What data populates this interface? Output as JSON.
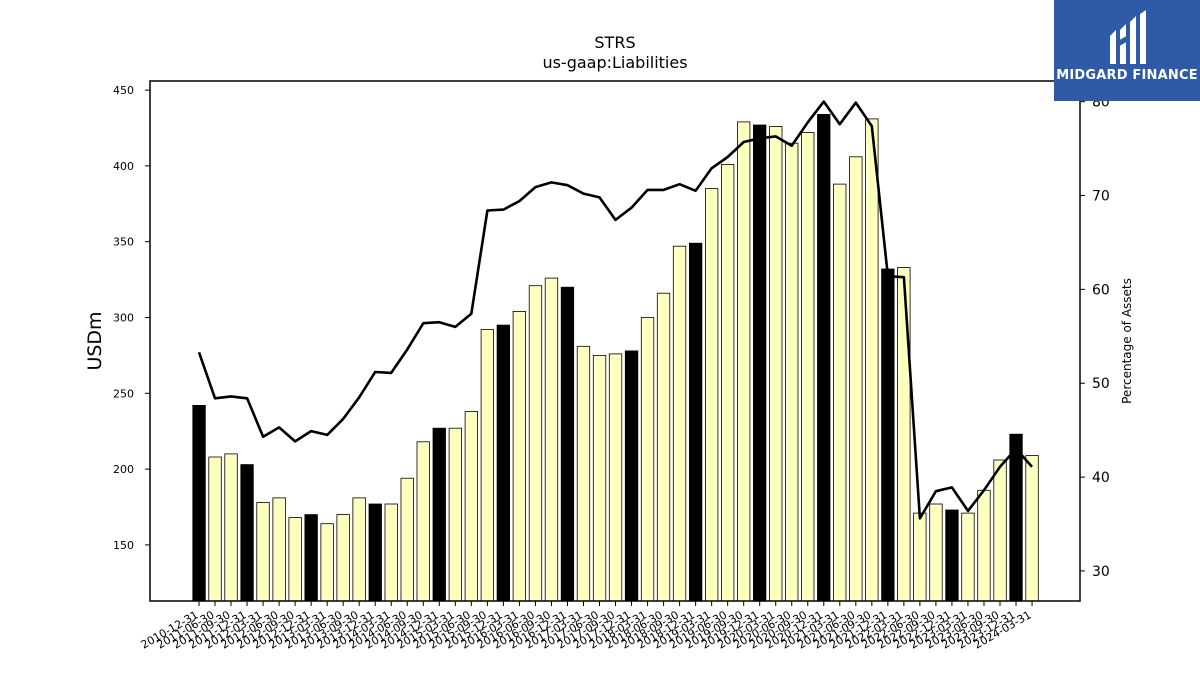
{
  "logo": {
    "text": "MIDGARD FINANCE",
    "icon": "midgard-finance-logo-icon",
    "color": "#2e5aa8"
  },
  "chart_data": {
    "type": "bar",
    "title": "STRS",
    "subtitle": "us-gaap:Liabilities",
    "ylabel": "USDm",
    "y2label": "Percentage of Assets",
    "ylim": [
      113,
      456
    ],
    "y2lim": [
      26.8,
      82.2
    ],
    "yticks": [
      150,
      200,
      250,
      300,
      350,
      400,
      450
    ],
    "y2ticks": [
      30,
      40,
      50,
      60,
      70,
      80
    ],
    "colors": {
      "annual": "#000000",
      "quarterly": "#ffffc0",
      "line": "#000000"
    },
    "categories": [
      "2010-12-31",
      "2011-06-30",
      "2011-09-30",
      "2011-12-31",
      "2012-03-31",
      "2012-06-30",
      "2012-09-30",
      "2012-12-31",
      "2013-03-31",
      "2013-06-30",
      "2013-09-30",
      "2013-12-31",
      "2014-03-31",
      "2014-06-30",
      "2014-09-30",
      "2014-12-31",
      "2015-03-31",
      "2015-06-30",
      "2015-09-30",
      "2015-12-31",
      "2016-03-31",
      "2016-06-30",
      "2016-09-30",
      "2016-12-31",
      "2017-03-31",
      "2017-06-30",
      "2017-09-30",
      "2017-12-31",
      "2018-03-31",
      "2018-06-30",
      "2018-09-30",
      "2018-12-31",
      "2019-03-31",
      "2019-06-30",
      "2019-09-30",
      "2019-12-31",
      "2020-03-31",
      "2020-06-30",
      "2020-09-30",
      "2020-12-31",
      "2021-03-31",
      "2021-06-30",
      "2021-09-30",
      "2021-12-31",
      "2022-03-31",
      "2022-06-30",
      "2022-09-30",
      "2022-12-31",
      "2023-03-31",
      "2023-06-30",
      "2023-09-30",
      "2023-12-31",
      "2024-03-31"
    ],
    "series": [
      {
        "kind": "bar",
        "values": [
          242,
          208,
          210,
          203,
          178,
          181,
          168,
          170,
          164,
          170,
          181,
          177,
          177,
          194,
          218,
          227,
          227,
          238,
          292,
          295,
          304,
          321,
          326,
          320,
          281,
          275,
          276,
          278,
          300,
          316,
          347,
          349,
          385,
          401,
          429,
          427,
          426,
          415,
          422,
          434,
          388,
          406,
          431,
          332,
          333,
          171,
          177,
          173,
          171,
          186,
          206,
          223,
          209
        ],
        "annual": [
          true,
          false,
          false,
          true,
          false,
          false,
          false,
          true,
          false,
          false,
          false,
          true,
          false,
          false,
          false,
          true,
          false,
          false,
          false,
          true,
          false,
          false,
          false,
          true,
          false,
          false,
          false,
          true,
          false,
          false,
          false,
          true,
          false,
          false,
          false,
          true,
          false,
          false,
          false,
          true,
          false,
          false,
          false,
          true,
          false,
          false,
          false,
          true,
          false,
          false,
          false,
          true,
          false
        ]
      },
      {
        "kind": "line",
        "axis": "right",
        "values": [
          53.3,
          48.4,
          48.6,
          48.4,
          44.3,
          45.3,
          43.8,
          44.9,
          44.5,
          46.2,
          48.5,
          51.2,
          51.1,
          53.6,
          56.4,
          56.5,
          56.0,
          57.4,
          68.4,
          68.5,
          69.4,
          70.9,
          71.4,
          71.1,
          70.2,
          69.8,
          67.4,
          68.7,
          70.6,
          70.6,
          71.2,
          70.5,
          72.9,
          74.1,
          75.7,
          76.1,
          76.3,
          75.3,
          77.8,
          80.0,
          77.6,
          79.9,
          77.4,
          61.4,
          61.3,
          35.6,
          38.5,
          38.9,
          36.4,
          38.6,
          41.1,
          43.0,
          41.1
        ]
      }
    ]
  }
}
